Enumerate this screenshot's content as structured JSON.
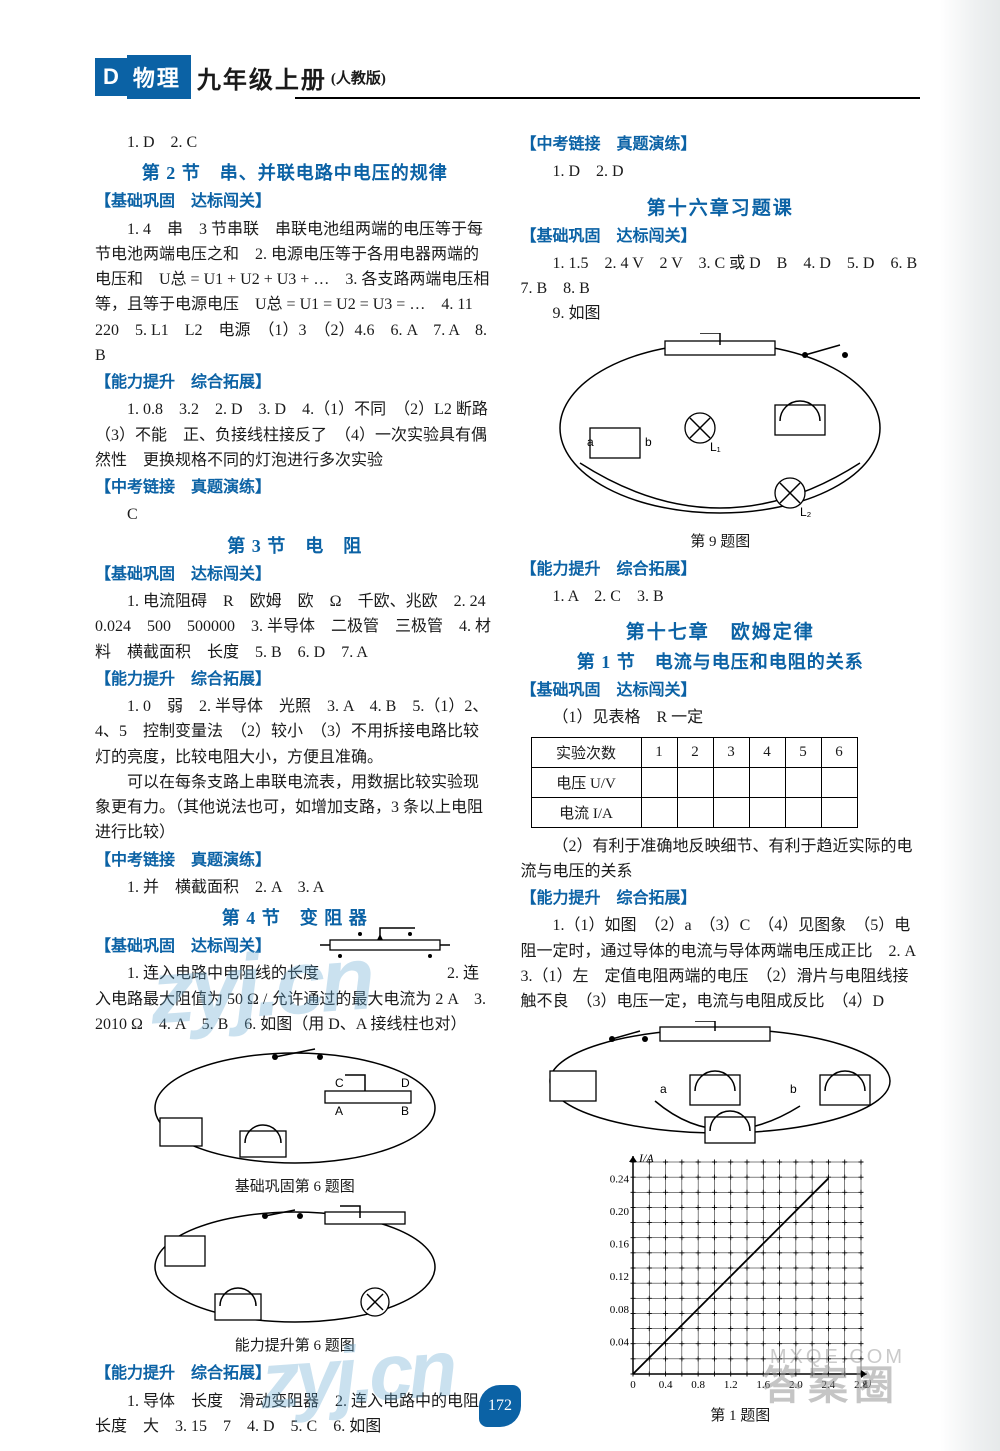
{
  "header": {
    "D": "D",
    "subject": "物理",
    "grade": "九年级上册",
    "edition": "(人教版)"
  },
  "left": {
    "top_answers": "1. D　2. C",
    "sec2_title": "第 2 节　串、并联电路中电压的规律",
    "sec2_b1_head": "【基础巩固　达标闯关】",
    "sec2_b1": "1. 4　串　3 节串联　串联电池组两端的电压等于每节电池两端电压之和　2. 电源电压等于各用电器两端的电压和　U总 = U1 + U2 + U3 + …　3. 各支路两端电压相等，且等于电源电压　U总 = U1 = U2 = U3 = …　4. 11　220　5. L1　L2　电源　（1）3　（2）4.6　6. A　7. A　8. B",
    "sec2_b2_head": "【能力提升　综合拓展】",
    "sec2_b2": "1. 0.8　3.2　2. D　3. D　4.（1）不同　（2）L2 断路　（3）不能　正、负接线柱接反了　（4）一次实验具有偶然性　更换规格不同的灯泡进行多次实验",
    "sec2_b3_head": "【中考链接　真题演练】",
    "sec2_b3": "C",
    "sec3_title": "第 3 节　电　阻",
    "sec3_b1_head": "【基础巩固　达标闯关】",
    "sec3_b1": "1. 电流阻碍　R　欧姆　欧　Ω　千欧、兆欧　2. 24　0.024　500　500000　3. 半导体　二极管　三极管　4. 材料　横截面积　长度　5. B　6. D　7. A",
    "sec3_b2_head": "【能力提升　综合拓展】",
    "sec3_b2": "1. 0　弱　2. 半导体　光照　3. A　4. B　5.（1）2、4、5　控制变量法　（2）较小　（3）不用拆接电路比较灯的亮度，比较电阻大小，方便且准确。",
    "sec3_b2b": "可以在每条支路上串联电流表，用数据比较实验现象更有力。（其他说法也可，如增加支路，3 条以上电阻进行比较）",
    "sec3_b3_head": "【中考链接　真题演练】",
    "sec3_b3": "1. 并　横截面积　2. A　3. A",
    "sec4_title": "第 4 节　变 阻 器",
    "sec4_b1_head": "【基础巩固　达标闯关】",
    "sec4_b1": "1. 连入电路中电阻线的长度　　　　　　　　2. 连入电路最大阻值为 50 Ω / 允许通过的最大电流为 2 A　3. 2010 Ω　4. A　5. B　6. 如图（用 D、A 接线柱也对）",
    "sec4_fig6_cap": "基础巩固第 6 题图",
    "sec4_fig6b_cap": "能力提升第 6 题图",
    "sec4_b2_head": "【能力提升　综合拓展】",
    "sec4_b2": "1. 导体　长度　滑动变阻器　2. 连入电路中的电阻长度　大　3. 15　7　4. D　5. C　6. 如图"
  },
  "right": {
    "link_head": "【中考链接　真题演练】",
    "link": "1. D　2. D",
    "chap16_title": "第十六章习题课",
    "c16_b1_head": "【基础巩固　达标闯关】",
    "c16_b1": "1. 1.5　2. 4 V　2 V　3. C 或 D　B　4. D　5. D　6. B　7. B　8. B",
    "c16_b1_9": "9. 如图",
    "c16_fig9_cap": "第 9 题图",
    "c16_b2_head": "【能力提升　综合拓展】",
    "c16_b2": "1. A　2. C　3. B",
    "chap17_title": "第十七章　欧姆定律",
    "sec17_1_title": "第 1 节　电流与电压和电阻的关系",
    "s17_b1_head": "【基础巩固　达标闯关】",
    "s17_b1_pre": "（1）见表格　R 一定",
    "table": {
      "headers": [
        "实验次数",
        "1",
        "2",
        "3",
        "4",
        "5",
        "6"
      ],
      "row2": "电压 U/V",
      "row3": "电流 I/A"
    },
    "s17_b1_post": "（2）有利于准确地反映细节、有利于趋近实际的电流与电压的关系",
    "s17_b2_head": "【能力提升　综合拓展】",
    "s17_b2": "1.（1）如图　（2）a　（3）C　（4）见图象　（5）电阻一定时，通过导体的电流与导体两端电压成正比　2. A　3.（1）左　定值电阻两端的电压　（2）滑片与电阻线接触不良　（3）电压一定，电流与电阻成反比　（4）D",
    "chart": {
      "xlabel": "U/V",
      "ylabel": "I/A",
      "xticks": [
        "0",
        "0.4",
        "0.8",
        "1.2",
        "1.6",
        "2.0",
        "2.4",
        "2.8"
      ],
      "yticks": [
        "0.04",
        "0.08",
        "0.12",
        "0.16",
        "0.20",
        "0.24"
      ],
      "xlim": [
        0,
        2.8
      ],
      "ylim": [
        0,
        0.26
      ],
      "grid_color": "#000000",
      "line_points": [
        [
          0,
          0
        ],
        [
          0.4,
          0.04
        ],
        [
          0.8,
          0.08
        ],
        [
          1.2,
          0.12
        ],
        [
          1.6,
          0.16
        ],
        [
          2.0,
          0.2
        ],
        [
          2.4,
          0.24
        ]
      ],
      "marker": "plus",
      "line_color": "#000000"
    },
    "s17_fig1_cap": "第 1 题图"
  },
  "page_no": "172",
  "watermark1": "zyj.cn",
  "watermark2": "zyj.cn",
  "wm_daan": "答案圈",
  "wm_mxqe": "MXQE.COM"
}
